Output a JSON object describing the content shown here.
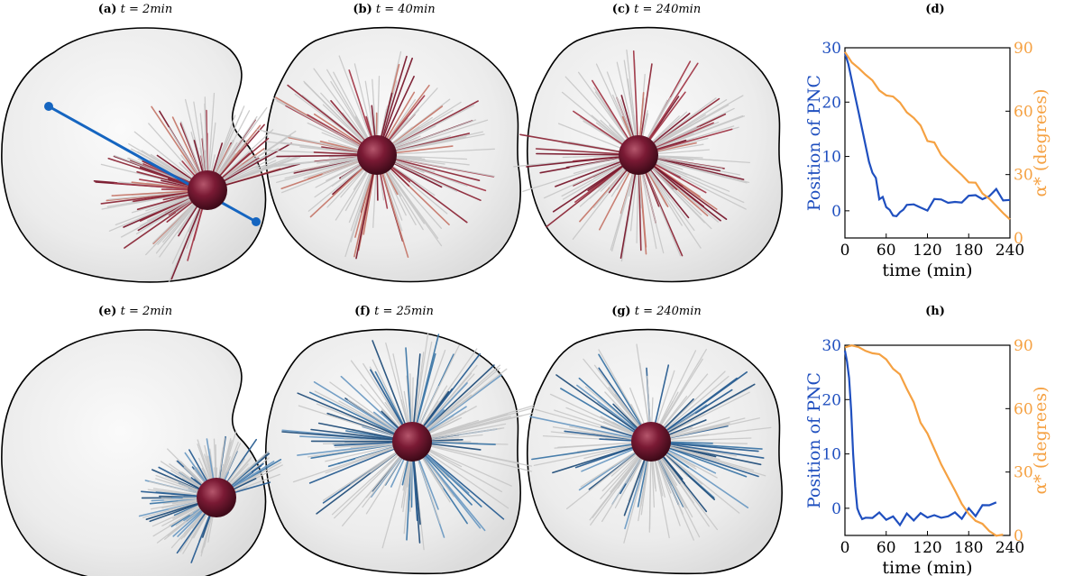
{
  "panels": [
    {
      "tag": "(a)",
      "math": "t = 2min",
      "type": "cell",
      "fiber_palette": "red",
      "arrangement": "corner"
    },
    {
      "tag": "(b)",
      "math": "t = 40min",
      "type": "cell",
      "fiber_palette": "red",
      "arrangement": "center"
    },
    {
      "tag": "(c)",
      "math": "t = 240min",
      "type": "cell",
      "fiber_palette": "red",
      "arrangement": "center"
    },
    {
      "tag": "(d)",
      "math": "",
      "type": "chart"
    },
    {
      "tag": "(e)",
      "math": "t = 2min",
      "type": "cell",
      "fiber_palette": "blue",
      "arrangement": "corner"
    },
    {
      "tag": "(f)",
      "math": "t = 25min",
      "type": "cell",
      "fiber_palette": "blue",
      "arrangement": "center"
    },
    {
      "tag": "(g)",
      "math": "t = 240min",
      "type": "cell",
      "fiber_palette": "blue",
      "arrangement": "center"
    },
    {
      "tag": "(h)",
      "math": "",
      "type": "chart"
    }
  ],
  "colors": {
    "pnc_blue": "#1f4fbf",
    "angle_orange": "#f5a142",
    "nucleus": "#7a1a34",
    "fiber_red": "#7a1a2e",
    "fiber_blue": "#2b5f93",
    "fiber_gray": "#c8c8c8",
    "axis_line": "#1565c0"
  },
  "chart_data": [
    {
      "type": "line",
      "panel": "(d)",
      "xlabel": "time (min)",
      "ylabel_left": "Position of PNC",
      "ylabel_right": "α* (degrees)",
      "xlim": [
        0,
        240
      ],
      "ylim_left": [
        -5,
        30
      ],
      "ylim_right": [
        0,
        90
      ],
      "xticks": [
        0,
        60,
        120,
        180,
        240
      ],
      "yticks_left": [
        0,
        10,
        20,
        30
      ],
      "yticks_right": [
        30,
        60,
        90
      ],
      "series": [
        {
          "name": "Position of PNC",
          "axis": "left",
          "color": "#1f4fbf",
          "x": [
            0,
            5,
            10,
            15,
            20,
            25,
            30,
            35,
            40,
            45,
            50,
            55,
            60,
            65,
            70,
            75,
            80,
            85,
            90,
            100,
            110,
            120,
            130,
            140,
            150,
            160,
            170,
            180,
            190,
            200,
            210,
            220,
            230,
            240
          ],
          "y": [
            29,
            27,
            24,
            21,
            18,
            15,
            12,
            9,
            7,
            5,
            3,
            1.5,
            0.5,
            0,
            -1,
            0,
            0.5,
            0.5,
            0,
            0.5,
            1,
            1,
            1.5,
            1,
            1.5,
            1.5,
            2,
            2,
            3,
            3,
            3.5,
            3.5,
            3,
            2.5
          ]
        },
        {
          "name": "α* (degrees)",
          "axis": "right",
          "color": "#f5a142",
          "x": [
            0,
            10,
            20,
            30,
            40,
            50,
            60,
            70,
            80,
            90,
            100,
            110,
            120,
            130,
            140,
            150,
            160,
            170,
            180,
            190,
            200,
            210,
            220,
            230,
            240
          ],
          "y": [
            88,
            84,
            81,
            78,
            74,
            71,
            68,
            66,
            64,
            60,
            57,
            52,
            47,
            44,
            39,
            35,
            32,
            29,
            26,
            25,
            21,
            18,
            14,
            11,
            8
          ]
        }
      ]
    },
    {
      "type": "line",
      "panel": "(h)",
      "xlabel": "time (min)",
      "ylabel_left": "Position of PNC",
      "ylabel_right": "α* (degrees)",
      "xlim": [
        0,
        240
      ],
      "ylim_left": [
        -5,
        30
      ],
      "ylim_right": [
        0,
        90
      ],
      "xticks": [
        0,
        60,
        120,
        180,
        240
      ],
      "yticks_left": [
        0,
        10,
        20,
        30
      ],
      "yticks_right": [
        30,
        60,
        90
      ],
      "series": [
        {
          "name": "Position of PNC",
          "axis": "left",
          "color": "#1f4fbf",
          "x": [
            0,
            3,
            6,
            9,
            12,
            15,
            18,
            21,
            25,
            30,
            40,
            50,
            60,
            70,
            80,
            90,
            100,
            110,
            120,
            130,
            140,
            150,
            160,
            170,
            180,
            190,
            200,
            210,
            220
          ],
          "y": [
            29,
            27,
            24,
            18,
            10,
            4,
            0,
            -1,
            -2,
            -1,
            -2,
            -1,
            -2,
            -1,
            -2,
            -1,
            -1.5,
            -1,
            -2,
            -1,
            -1.5,
            -1,
            -1.5,
            -1,
            0,
            -1,
            0,
            0.5,
            0
          ]
        },
        {
          "name": "α* (degrees)",
          "axis": "right",
          "color": "#f5a142",
          "x": [
            0,
            10,
            20,
            30,
            40,
            50,
            60,
            70,
            80,
            90,
            100,
            110,
            120,
            130,
            140,
            150,
            160,
            170,
            180,
            190,
            200,
            210,
            220,
            230
          ],
          "y": [
            89,
            89,
            88,
            87,
            87,
            86,
            84,
            80,
            76,
            70,
            62,
            54,
            47,
            40,
            33,
            27,
            21,
            16,
            11,
            8,
            5,
            3,
            1,
            0
          ]
        }
      ]
    }
  ]
}
